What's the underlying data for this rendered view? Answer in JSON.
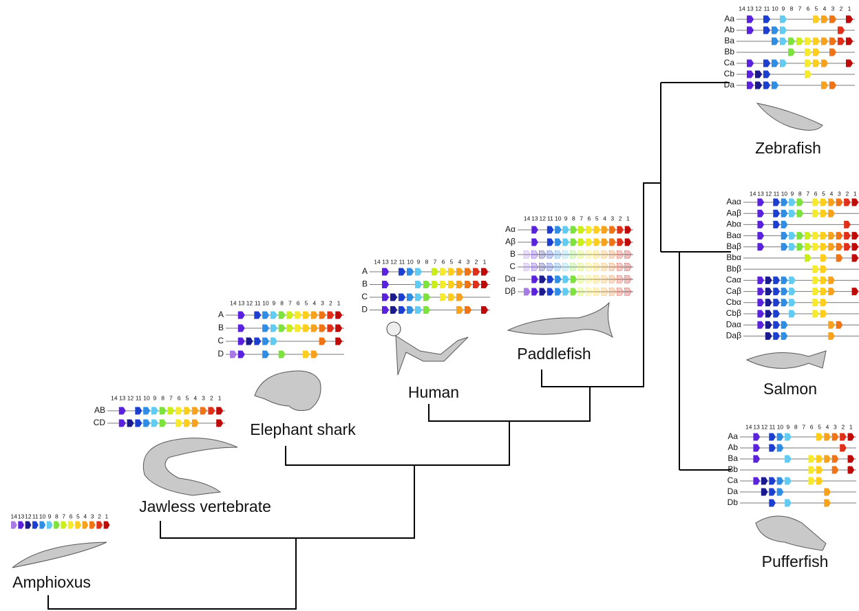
{
  "gene_numbers": [
    14,
    13,
    12,
    11,
    10,
    9,
    8,
    7,
    6,
    5,
    4,
    3,
    2,
    1
  ],
  "gene_colors": [
    "#a77ae6",
    "#5a22dc",
    "#1b1b8f",
    "#1d3fd0",
    "#2f8de3",
    "#62cbf2",
    "#7ee23e",
    "#c9ee1a",
    "#f6ea2c",
    "#ffcd1c",
    "#f7a21f",
    "#ef7416",
    "#e0301a",
    "#bf0a0a"
  ],
  "species": [
    {
      "name": "Amphioxus",
      "clusters": [
        {
          "genes": [
            14,
            13,
            12,
            11,
            10,
            9,
            8,
            7,
            6,
            5,
            4,
            3,
            2,
            1
          ]
        }
      ]
    },
    {
      "name": "Jawless vertebrate",
      "clusters": [
        {
          "label": "AB",
          "genes": [
            13,
            11,
            10,
            9,
            8,
            7,
            6,
            5,
            4,
            3,
            2,
            1
          ]
        },
        {
          "label": "CD",
          "genes": [
            13,
            12,
            11,
            10,
            9,
            8,
            6,
            5,
            4,
            1
          ]
        }
      ]
    },
    {
      "name": "Elephant shark",
      "clusters": [
        {
          "label": "A",
          "genes": [
            13,
            11,
            10,
            9,
            8,
            7,
            6,
            5,
            4,
            3,
            2,
            1
          ]
        },
        {
          "label": "B",
          "genes": [
            13,
            10,
            9,
            8,
            7,
            6,
            5,
            4,
            3,
            2,
            1
          ]
        },
        {
          "label": "C",
          "genes": [
            13,
            12,
            11,
            10,
            9,
            3,
            1
          ]
        },
        {
          "label": "D",
          "genes": [
            14,
            13,
            10,
            8,
            5,
            4
          ]
        }
      ]
    },
    {
      "name": "Human",
      "clusters": [
        {
          "label": "A",
          "genes": [
            13,
            11,
            10,
            9,
            7,
            6,
            5,
            4,
            3,
            2,
            1
          ]
        },
        {
          "label": "B",
          "genes": [
            13,
            9,
            8,
            7,
            6,
            5,
            4,
            3,
            2,
            1
          ]
        },
        {
          "label": "C",
          "genes": [
            13,
            12,
            11,
            10,
            9,
            8,
            6,
            5,
            4
          ]
        },
        {
          "label": "D",
          "genes": [
            13,
            12,
            11,
            10,
            9,
            8,
            4,
            3,
            1
          ]
        }
      ]
    },
    {
      "name": "Paddlefish",
      "clusters": [
        {
          "label": "Aα",
          "genes": [
            13,
            11,
            10,
            9,
            8,
            7,
            6,
            5,
            4,
            3,
            2,
            1
          ]
        },
        {
          "label": "Aβ",
          "genes": [
            13,
            11,
            10,
            9,
            8,
            7,
            6,
            5,
            4,
            3,
            2,
            1
          ]
        },
        {
          "label": "B",
          "genes": [],
          "pale_genes": [
            14,
            13,
            12,
            11,
            10,
            9,
            8,
            7,
            6,
            5,
            4,
            3,
            2,
            1
          ]
        },
        {
          "label": "C",
          "genes": [],
          "pale_genes": [
            14,
            13,
            12,
            11,
            10,
            9,
            8,
            7,
            6,
            5,
            4,
            3,
            2,
            1
          ]
        },
        {
          "label": "Dα",
          "genes": [
            13,
            12,
            11,
            10,
            9,
            8
          ],
          "pale_genes": [
            7,
            6,
            5,
            4,
            3,
            2,
            1
          ]
        },
        {
          "label": "Dβ",
          "genes": [
            14,
            13,
            12,
            11,
            10,
            9,
            8
          ],
          "pale_genes": [
            7,
            6,
            5,
            4,
            3,
            2,
            1
          ]
        }
      ]
    },
    {
      "name": "Zebrafish",
      "clusters": [
        {
          "label": "Aa",
          "genes": [
            13,
            11,
            9,
            5,
            4,
            3,
            1
          ]
        },
        {
          "label": "Ab",
          "genes": [
            13,
            11,
            10,
            9,
            2
          ]
        },
        {
          "label": "Ba",
          "genes": [
            10,
            9,
            8,
            7,
            6,
            5,
            4,
            3,
            2,
            1
          ]
        },
        {
          "label": "Bb",
          "genes": [
            8,
            6,
            5,
            3
          ]
        },
        {
          "label": "Ca",
          "genes": [
            13,
            11,
            10,
            9,
            6,
            5,
            4,
            1
          ]
        },
        {
          "label": "Cb",
          "genes": [
            13,
            12,
            11,
            6
          ]
        },
        {
          "label": "Da",
          "genes": [
            13,
            12,
            11,
            10,
            4,
            3
          ]
        }
      ]
    },
    {
      "name": "Salmon",
      "clusters": [
        {
          "label": "Aaα",
          "genes": [
            13,
            11,
            10,
            9,
            8,
            6,
            5,
            4,
            3,
            2,
            1
          ]
        },
        {
          "label": "Aaβ",
          "genes": [
            13,
            11,
            10,
            9,
            8,
            6,
            5,
            4
          ]
        },
        {
          "label": "Abα",
          "genes": [
            13,
            11,
            10,
            2
          ]
        },
        {
          "label": "Baα",
          "genes": [
            13,
            10,
            9,
            8,
            7,
            6,
            5,
            4,
            3,
            2,
            1
          ]
        },
        {
          "label": "Baβ",
          "genes": [
            13,
            10,
            9,
            8,
            7,
            6,
            5,
            4,
            3,
            2,
            1
          ]
        },
        {
          "label": "Bbα",
          "genes": [
            7,
            5,
            3,
            1
          ]
        },
        {
          "label": "Bbβ",
          "genes": [
            6,
            5
          ]
        },
        {
          "label": "Caα",
          "genes": [
            13,
            12,
            11,
            10,
            9,
            6,
            5,
            4
          ]
        },
        {
          "label": "Caβ",
          "genes": [
            13,
            12,
            11,
            10,
            9,
            6,
            5,
            4,
            1
          ]
        },
        {
          "label": "Cbα",
          "genes": [
            13,
            12,
            11,
            10,
            9,
            6,
            5
          ]
        },
        {
          "label": "Cbβ",
          "genes": [
            13,
            12,
            11,
            9,
            6,
            5
          ]
        },
        {
          "label": "Daα",
          "genes": [
            13,
            12,
            11,
            10,
            4,
            3
          ]
        },
        {
          "label": "Daβ",
          "genes": [
            12,
            11,
            10,
            4
          ]
        }
      ]
    },
    {
      "name": "Pufferfish",
      "clusters": [
        {
          "label": "Aa",
          "genes": [
            13,
            11,
            10,
            9,
            5,
            4,
            3,
            2,
            1
          ]
        },
        {
          "label": "Ab",
          "genes": [
            13,
            11,
            10,
            2
          ]
        },
        {
          "label": "Ba",
          "genes": [
            13,
            9,
            6,
            5,
            4,
            3,
            1
          ]
        },
        {
          "label": "Bb",
          "genes": [
            6,
            5,
            3,
            1
          ]
        },
        {
          "label": "Ca",
          "genes": [
            13,
            12,
            11,
            10,
            9,
            6,
            5
          ]
        },
        {
          "label": "Da",
          "genes": [
            12,
            11,
            10,
            4
          ]
        },
        {
          "label": "Db",
          "genes": [
            11,
            9,
            4
          ]
        }
      ]
    }
  ]
}
